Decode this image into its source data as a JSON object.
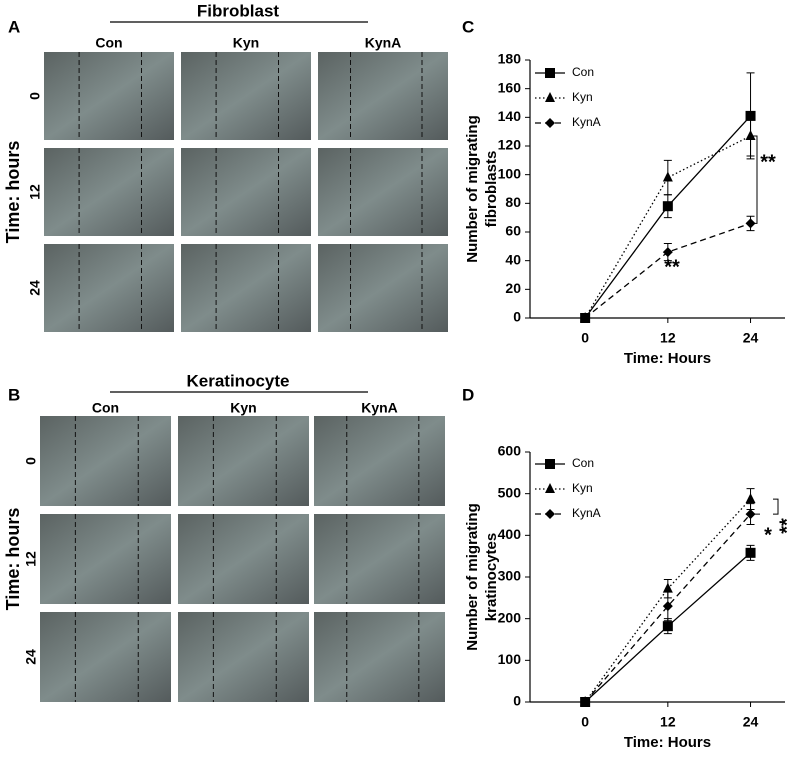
{
  "panel_a": {
    "label": "A",
    "title": "Fibroblast",
    "columns": [
      "Con",
      "Kyn",
      "KynA"
    ],
    "rows": [
      "0",
      "12",
      "24"
    ],
    "row_axis": "Time: hours"
  },
  "panel_b": {
    "label": "B",
    "title": "Keratinocyte",
    "columns": [
      "Con",
      "Kyn",
      "KynA"
    ],
    "rows": [
      "0",
      "12",
      "24"
    ],
    "row_axis": "Time: hours"
  },
  "chart_data": [
    {
      "type": "line",
      "panel_label": "C",
      "xlabel": "Time: Hours",
      "ylabel": [
        "Number of migrating",
        "fibroblasts"
      ],
      "x": [
        0,
        12,
        24
      ],
      "xlim": [
        -8,
        29
      ],
      "xticks": [
        0,
        12,
        24
      ],
      "ylim": [
        0,
        180
      ],
      "yticks": [
        0,
        20,
        40,
        60,
        80,
        100,
        120,
        140,
        160,
        180
      ],
      "legend": "upper left",
      "series": [
        {
          "name": "Con",
          "color": "#000000",
          "marker": "square",
          "line_style": "solid",
          "values": [
            0,
            78,
            141
          ],
          "errors": [
            0,
            8,
            30
          ]
        },
        {
          "name": "Kyn",
          "color": "#000000",
          "marker": "triangle",
          "line_style": "dotted",
          "values": [
            0,
            98,
            127
          ],
          "errors": [
            0,
            12,
            14
          ]
        },
        {
          "name": "KynA",
          "color": "#000000",
          "marker": "diamond",
          "line_style": "dashed",
          "values": [
            0,
            46,
            66
          ],
          "errors": [
            0,
            6,
            5
          ]
        }
      ],
      "annotations": [
        "**"
      ]
    },
    {
      "type": "line",
      "panel_label": "D",
      "xlabel": "Time: Hours",
      "ylabel": [
        "Number of migrating",
        "kratinocytes"
      ],
      "x": [
        0,
        12,
        24
      ],
      "xlim": [
        -8,
        29
      ],
      "xticks": [
        0,
        12,
        24
      ],
      "ylim": [
        0,
        600
      ],
      "yticks": [
        0,
        100,
        200,
        300,
        400,
        500,
        600
      ],
      "legend": "upper left",
      "series": [
        {
          "name": "Con",
          "color": "#000000",
          "marker": "square",
          "line_style": "solid",
          "values": [
            0,
            182,
            358
          ],
          "errors": [
            0,
            18,
            18
          ]
        },
        {
          "name": "Kyn",
          "color": "#000000",
          "marker": "triangle",
          "line_style": "dotted",
          "values": [
            0,
            272,
            487
          ],
          "errors": [
            0,
            22,
            25
          ]
        },
        {
          "name": "KynA",
          "color": "#000000",
          "marker": "diamond",
          "line_style": "dashed",
          "values": [
            0,
            230,
            451
          ],
          "errors": [
            0,
            35,
            25
          ]
        }
      ],
      "annotations": [
        "**",
        "*",
        "**"
      ]
    }
  ]
}
